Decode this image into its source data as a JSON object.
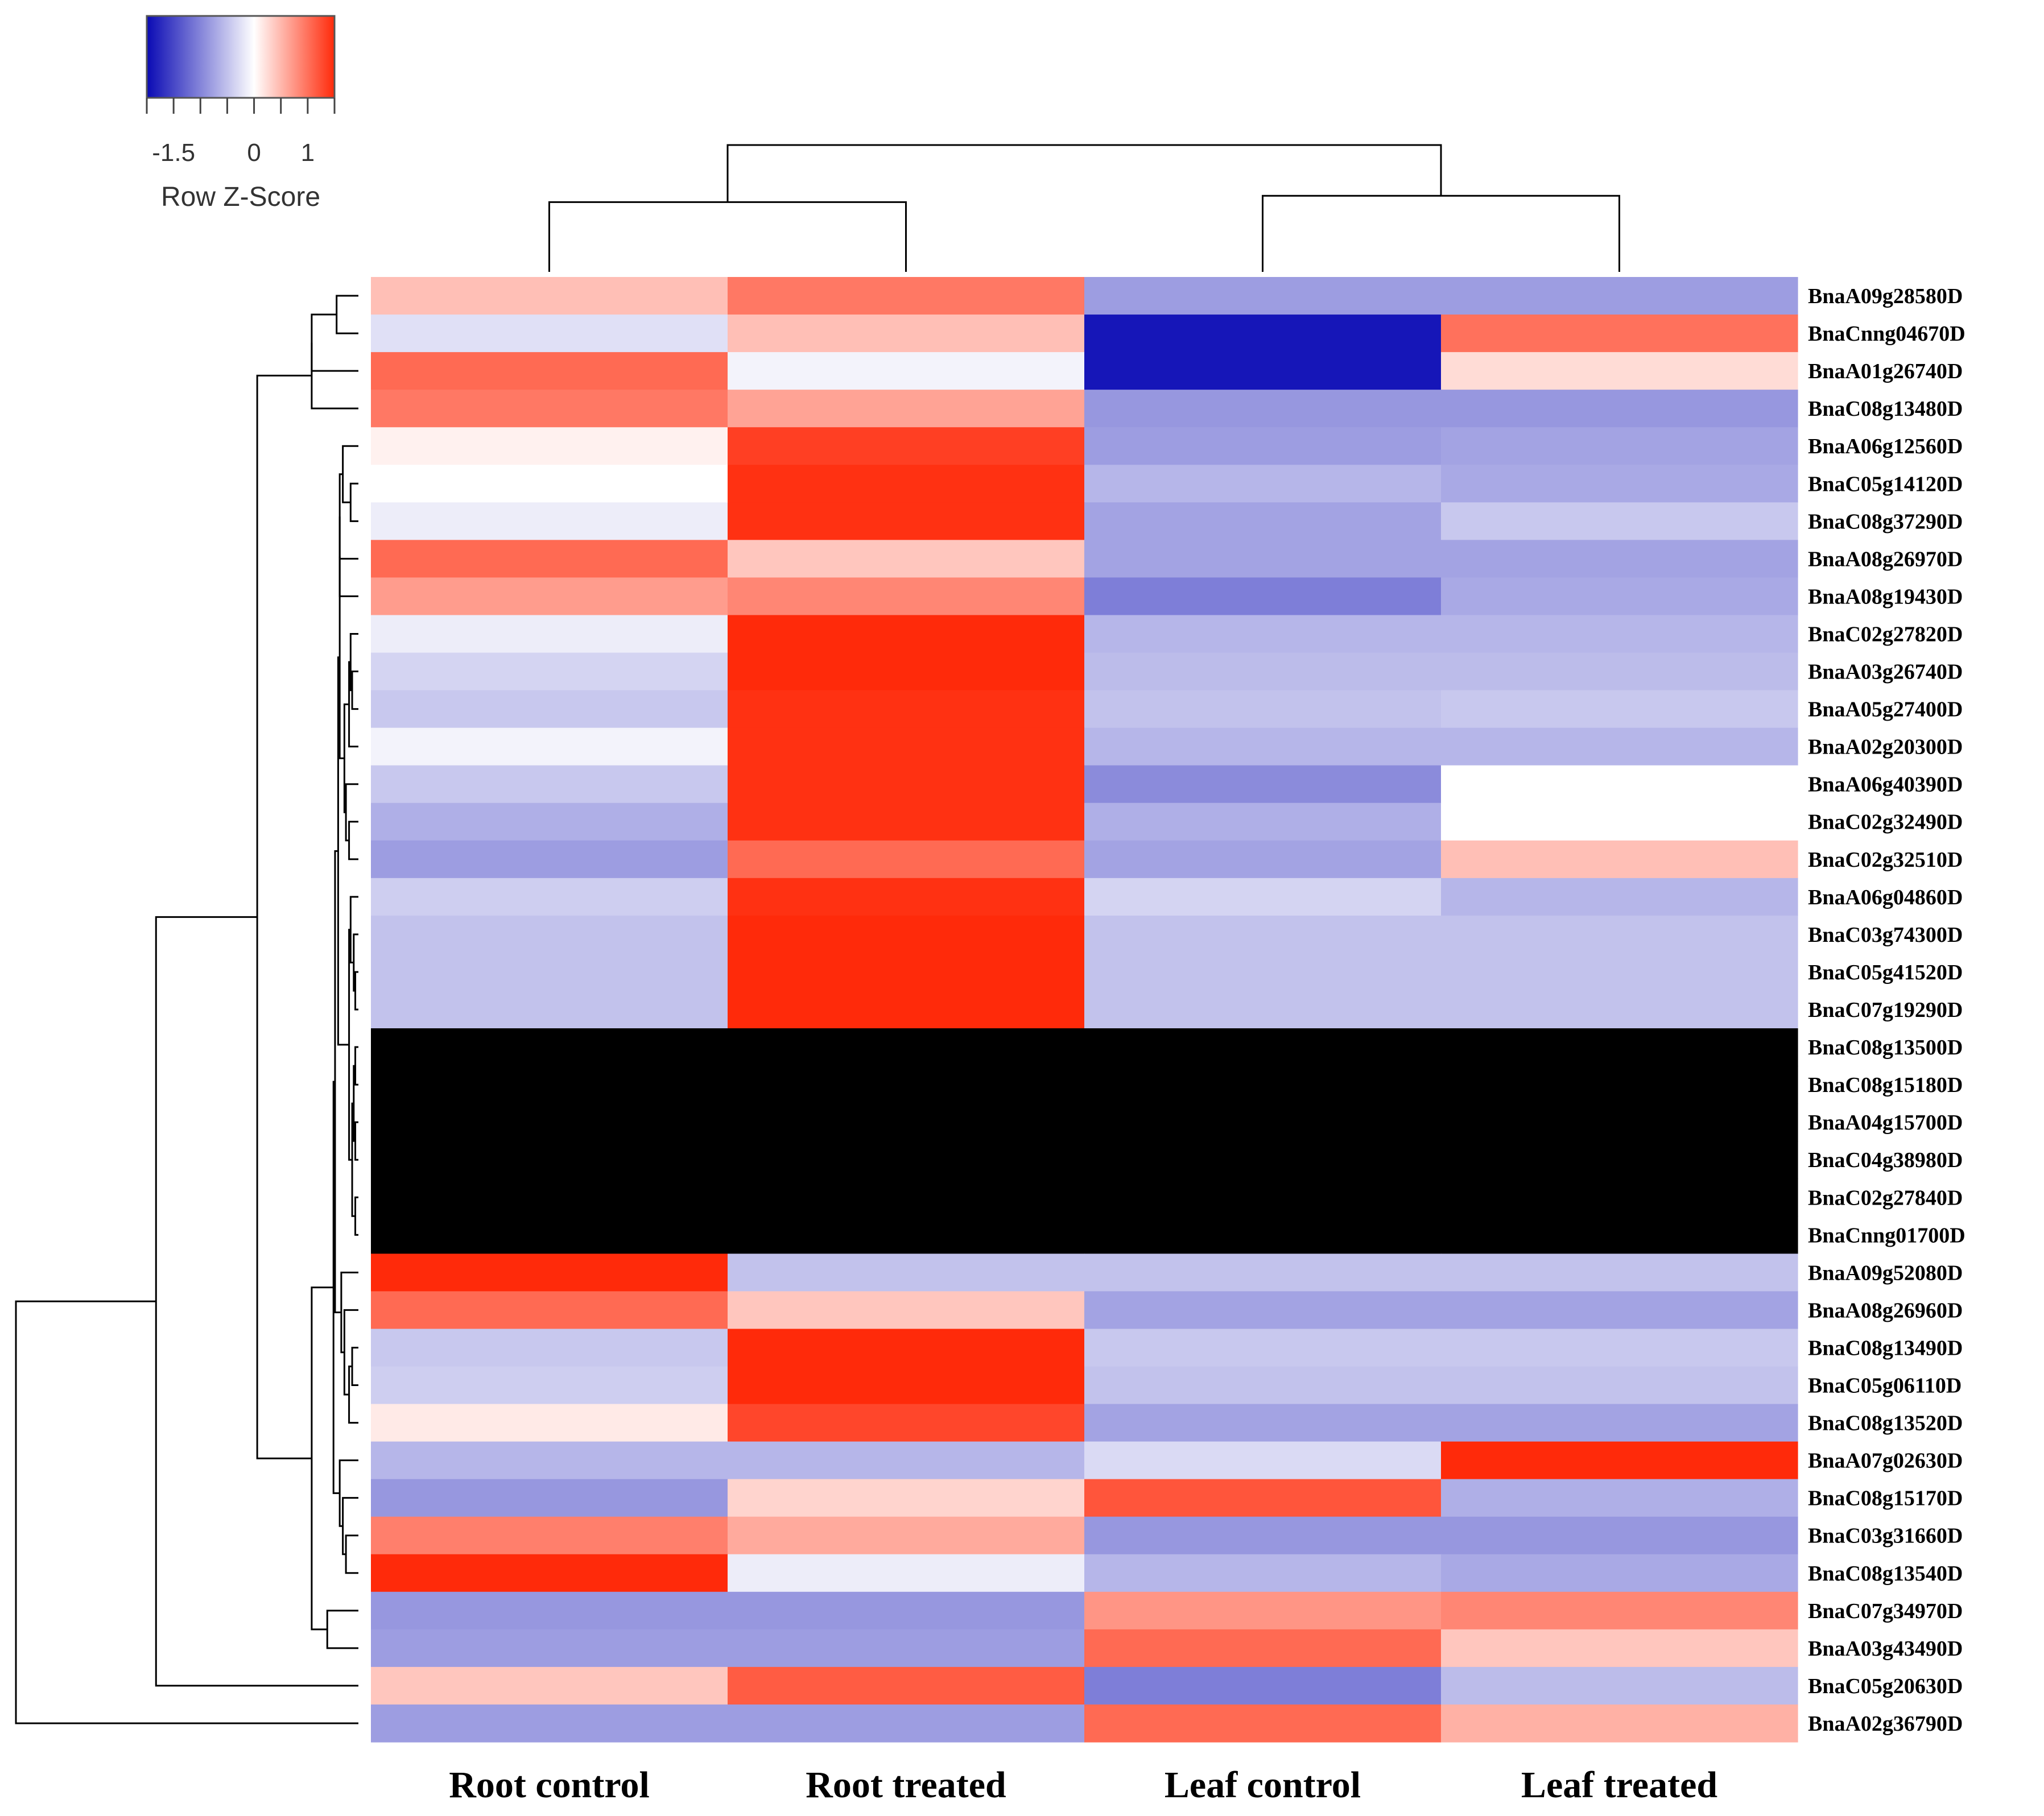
{
  "chart_data": {
    "type": "heatmap",
    "title": "",
    "legend": {
      "title": "Row Z-Score",
      "ticks": [
        "-1.5",
        "0",
        "1"
      ],
      "tick_values": [
        -1.5,
        0,
        1
      ],
      "range": [
        -2,
        1.5
      ],
      "colors": {
        "low": "#0a0ab4",
        "mid": "#ffffff",
        "high": "#ff2a0a"
      },
      "placement": "top-left"
    },
    "na_color": "#000000",
    "columns": [
      "Root control",
      "Root treated",
      "Leaf control",
      "Leaf treated"
    ],
    "rows": [
      "BnaA09g28580D",
      "BnaCnng04670D",
      "BnaA01g26740D",
      "BnaC08g13480D",
      "BnaA06g12560D",
      "BnaC05g14120D",
      "BnaC08g37290D",
      "BnaA08g26970D",
      "BnaA08g19430D",
      "BnaC02g27820D",
      "BnaA03g26740D",
      "BnaA05g27400D",
      "BnaA02g20300D",
      "BnaA06g40390D",
      "BnaC02g32490D",
      "BnaC02g32510D",
      "BnaA06g04860D",
      "BnaC03g74300D",
      "BnaC05g41520D",
      "BnaC07g19290D",
      "BnaC08g13500D",
      "BnaC08g15180D",
      "BnaA04g15700D",
      "BnaC04g38980D",
      "BnaC02g27840D",
      "BnaCnng01700D",
      "BnaA09g52080D",
      "BnaA08g26960D",
      "BnaC08g13490D",
      "BnaC05g06110D",
      "BnaC08g13520D",
      "BnaA07g02630D",
      "BnaC08g15170D",
      "BnaC03g31660D",
      "BnaC08g13540D",
      "BnaC07g34970D",
      "BnaA03g43490D",
      "BnaC05g20630D",
      "BnaA02g36790D"
    ],
    "values": [
      [
        0.45,
        0.95,
        -0.8,
        -0.8
      ],
      [
        -0.25,
        0.45,
        -1.9,
        1.0
      ],
      [
        1.05,
        -0.1,
        -1.9,
        0.25
      ],
      [
        0.95,
        0.65,
        -0.85,
        -0.85
      ],
      [
        0.1,
        1.35,
        -0.8,
        -0.75
      ],
      [
        0.0,
        1.45,
        -0.6,
        -0.7
      ],
      [
        -0.15,
        1.45,
        -0.75,
        -0.45
      ],
      [
        1.05,
        0.4,
        -0.75,
        -0.75
      ],
      [
        0.7,
        0.85,
        -1.05,
        -0.7
      ],
      [
        -0.15,
        1.5,
        -0.6,
        -0.6
      ],
      [
        -0.35,
        1.5,
        -0.55,
        -0.55
      ],
      [
        -0.45,
        1.45,
        -0.5,
        -0.45
      ],
      [
        -0.1,
        1.45,
        -0.6,
        -0.6
      ],
      [
        -0.45,
        1.45,
        -0.95,
        0.0
      ],
      [
        -0.65,
        1.45,
        -0.65,
        0.0
      ],
      [
        -0.8,
        1.05,
        -0.75,
        0.45
      ],
      [
        -0.4,
        1.45,
        -0.35,
        -0.6
      ],
      [
        -0.5,
        1.5,
        -0.5,
        -0.5
      ],
      [
        -0.5,
        1.5,
        -0.5,
        -0.5
      ],
      [
        -0.5,
        1.5,
        -0.5,
        -0.5
      ],
      [
        null,
        null,
        null,
        null
      ],
      [
        null,
        null,
        null,
        null
      ],
      [
        null,
        null,
        null,
        null
      ],
      [
        null,
        null,
        null,
        null
      ],
      [
        null,
        null,
        null,
        null
      ],
      [
        null,
        null,
        null,
        null
      ],
      [
        1.5,
        -0.5,
        -0.5,
        -0.5
      ],
      [
        1.05,
        0.4,
        -0.75,
        -0.75
      ],
      [
        -0.45,
        1.5,
        -0.45,
        -0.45
      ],
      [
        -0.4,
        1.5,
        -0.5,
        -0.5
      ],
      [
        0.15,
        1.3,
        -0.75,
        -0.75
      ],
      [
        -0.6,
        -0.6,
        -0.3,
        1.5
      ],
      [
        -0.85,
        0.3,
        1.2,
        -0.65
      ],
      [
        0.9,
        0.6,
        -0.85,
        -0.85
      ],
      [
        1.5,
        -0.15,
        -0.6,
        -0.7
      ],
      [
        -0.85,
        -0.85,
        0.75,
        0.85
      ],
      [
        -0.8,
        -0.8,
        1.05,
        0.4
      ],
      [
        0.4,
        1.15,
        -1.05,
        -0.55
      ],
      [
        -0.8,
        -0.8,
        1.05,
        0.55
      ]
    ],
    "col_dendrogram": [
      {
        "a": 0,
        "b": 1,
        "height": 0.55
      },
      {
        "a": 2,
        "b": 3,
        "height": 0.6
      },
      {
        "a": 4,
        "b": 5,
        "height": 1.0
      }
    ],
    "row_dendrogram": [
      {
        "a": 0,
        "b": 1,
        "height": 0.014
      },
      {
        "a": 39,
        "b": 2,
        "height": 0.03
      },
      {
        "a": 40,
        "b": 3,
        "height": 0.03
      },
      {
        "a": 5,
        "b": 6,
        "height": 0.005
      },
      {
        "a": 4,
        "b": 42,
        "height": 0.01
      },
      {
        "a": 43,
        "b": 7,
        "height": 0.012
      },
      {
        "a": 44,
        "b": 8,
        "height": 0.012
      },
      {
        "a": 10,
        "b": 11,
        "height": 0.004
      },
      {
        "a": 9,
        "b": 46,
        "height": 0.005
      },
      {
        "a": 47,
        "b": 12,
        "height": 0.006
      },
      {
        "a": 14,
        "b": 15,
        "height": 0.006
      },
      {
        "a": 13,
        "b": 49,
        "height": 0.008
      },
      {
        "a": 48,
        "b": 50,
        "height": 0.009
      },
      {
        "a": 45,
        "b": 51,
        "height": 0.012
      },
      {
        "a": 18,
        "b": 19,
        "height": 0.002
      },
      {
        "a": 17,
        "b": 53,
        "height": 0.003
      },
      {
        "a": 16,
        "b": 54,
        "height": 0.005
      },
      {
        "a": 20,
        "b": 21,
        "height": 0.002
      },
      {
        "a": 22,
        "b": 23,
        "height": 0.002
      },
      {
        "a": 56,
        "b": 57,
        "height": 0.003
      },
      {
        "a": 24,
        "b": 25,
        "height": 0.002
      },
      {
        "a": 58,
        "b": 59,
        "height": 0.004
      },
      {
        "a": 55,
        "b": 60,
        "height": 0.006
      },
      {
        "a": 52,
        "b": 61,
        "height": 0.013
      },
      {
        "a": 28,
        "b": 29,
        "height": 0.004
      },
      {
        "a": 63,
        "b": 30,
        "height": 0.006
      },
      {
        "a": 27,
        "b": 64,
        "height": 0.009
      },
      {
        "a": 26,
        "b": 65,
        "height": 0.011
      },
      {
        "a": 62,
        "b": 66,
        "height": 0.015
      },
      {
        "a": 33,
        "b": 34,
        "height": 0.008
      },
      {
        "a": 32,
        "b": 68,
        "height": 0.01
      },
      {
        "a": 31,
        "b": 69,
        "height": 0.012
      },
      {
        "a": 67,
        "b": 70,
        "height": 0.016
      },
      {
        "a": 35,
        "b": 36,
        "height": 0.02
      },
      {
        "a": 71,
        "b": 72,
        "height": 0.03
      },
      {
        "a": 41,
        "b": 73,
        "height": 0.065
      },
      {
        "a": 74,
        "b": 37,
        "height": 0.13
      },
      {
        "a": 75,
        "b": 38,
        "height": 0.22
      }
    ]
  }
}
